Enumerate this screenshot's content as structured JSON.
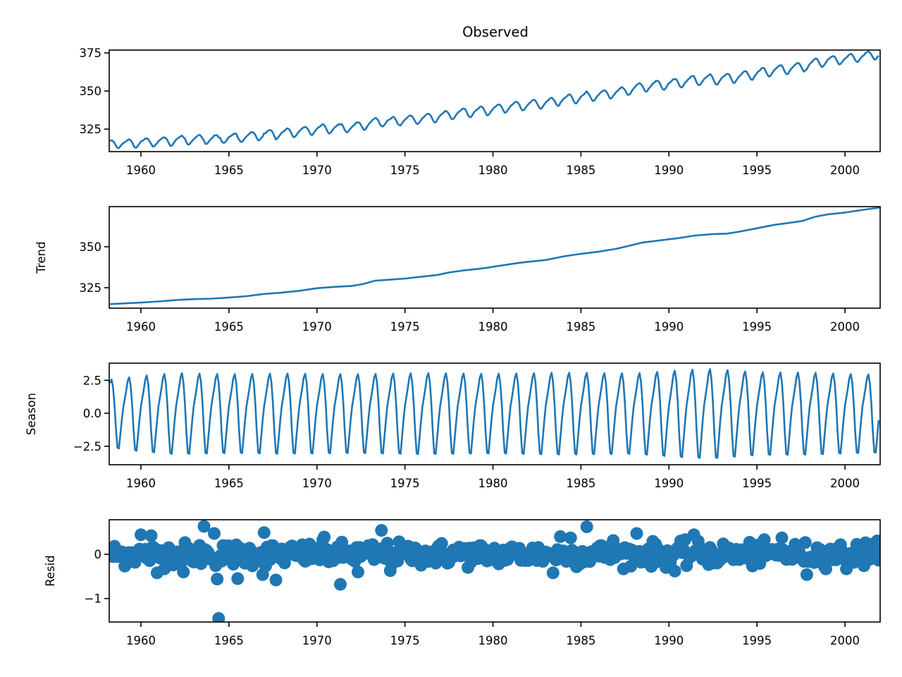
{
  "figure": {
    "title": "Observed",
    "line_color": "#1f77b4",
    "marker_color": "#1f77b4"
  },
  "chart_data": [
    {
      "id": "observed",
      "type": "line",
      "title": "Observed",
      "xlabel": "",
      "ylabel": "",
      "xlim": [
        1958.2,
        2002.0
      ],
      "ylim": [
        310.2,
        376.9
      ],
      "xticks": [
        1960,
        1965,
        1970,
        1975,
        1980,
        1985,
        1990,
        1995,
        2000
      ],
      "xtick_labels": [
        "1960",
        "1965",
        "1970",
        "1975",
        "1980",
        "1985",
        "1990",
        "1995",
        "2000"
      ],
      "yticks": [
        325,
        350,
        375
      ],
      "ytick_labels": [
        "325",
        "350",
        "375"
      ],
      "grid": false,
      "series": [
        {
          "name": "observed",
          "frequency": "monthly",
          "start": 1958.25,
          "end": 2001.99,
          "annual_mean_years": [
            1958,
            1960,
            1962,
            1964,
            1966,
            1968,
            1970,
            1972,
            1974,
            1976,
            1978,
            1980,
            1982,
            1984,
            1986,
            1988,
            1990,
            1992,
            1994,
            1996,
            1998,
            2000,
            2002
          ],
          "annual_mean_values": [
            315.2,
            316.9,
            318.4,
            319.4,
            321.1,
            322.9,
            325.5,
            327.3,
            330.2,
            332.0,
            335.3,
            338.5,
            341.1,
            344.1,
            346.9,
            350.4,
            354.0,
            356.3,
            358.6,
            362.2,
            366.4,
            369.3,
            372.5
          ]
        }
      ]
    },
    {
      "id": "trend",
      "type": "line",
      "title": "",
      "xlabel": "",
      "ylabel": "Trend",
      "xlim": [
        1958.2,
        2002.0
      ],
      "ylim": [
        312.5,
        374.5
      ],
      "xticks": [
        1960,
        1965,
        1970,
        1975,
        1980,
        1985,
        1990,
        1995,
        2000
      ],
      "xtick_labels": [
        "1960",
        "1965",
        "1970",
        "1975",
        "1980",
        "1985",
        "1990",
        "1995",
        "2000"
      ],
      "yticks": [
        325,
        350
      ],
      "ytick_labels": [
        "325",
        "350"
      ],
      "grid": false,
      "series": [
        {
          "name": "trend",
          "x": [
            1958.25,
            1960.0,
            1961.0,
            1962.0,
            1963.0,
            1964.0,
            1965.0,
            1966.0,
            1967.0,
            1968.0,
            1969.0,
            1970.0,
            1971.0,
            1972.0,
            1972.6,
            1973.3,
            1974.0,
            1975.0,
            1976.0,
            1976.8,
            1977.5,
            1978.3,
            1979.5,
            1980.5,
            1981.5,
            1982.5,
            1983.0,
            1984.0,
            1985.0,
            1986.0,
            1987.0,
            1987.6,
            1988.5,
            1989.5,
            1990.5,
            1991.5,
            1992.5,
            1993.3,
            1994.0,
            1995.0,
            1996.0,
            1997.0,
            1997.6,
            1998.3,
            1999.0,
            2000.0,
            2001.0,
            2002.0
          ],
          "y": [
            315.0,
            315.9,
            316.6,
            317.5,
            318.0,
            318.3,
            319.0,
            319.8,
            321.2,
            322.0,
            323.1,
            324.7,
            325.5,
            326.1,
            327.2,
            329.3,
            329.8,
            330.6,
            331.8,
            332.7,
            334.3,
            335.5,
            336.9,
            338.6,
            340.2,
            341.4,
            341.9,
            344.1,
            345.7,
            347.0,
            348.7,
            350.2,
            352.6,
            353.9,
            355.2,
            356.9,
            357.7,
            358.0,
            359.2,
            361.3,
            363.4,
            364.8,
            365.8,
            368.3,
            369.7,
            370.9,
            372.5,
            374.0
          ]
        }
      ]
    },
    {
      "id": "season",
      "type": "line",
      "title": "",
      "xlabel": "",
      "ylabel": "Season",
      "xlim": [
        1958.2,
        2002.0
      ],
      "ylim": [
        -3.9,
        3.8
      ],
      "xticks": [
        1960,
        1965,
        1970,
        1975,
        1980,
        1985,
        1990,
        1995,
        2000
      ],
      "xtick_labels": [
        "1960",
        "1965",
        "1970",
        "1975",
        "1980",
        "1985",
        "1990",
        "1995",
        "2000"
      ],
      "yticks": [
        -2.5,
        0.0,
        2.5
      ],
      "ytick_labels": [
        "−2.5",
        "0.0",
        "2.5"
      ],
      "grid": false,
      "series": [
        {
          "name": "season",
          "frequency": "monthly",
          "start": 1958.25,
          "end": 2001.99,
          "monthly_profile_jan_to_dec": [
            0.55,
            1.25,
            1.95,
            2.75,
            3.05,
            2.35,
            0.75,
            -1.45,
            -3.05,
            -3.1,
            -1.85,
            -0.55
          ],
          "amplitude_years": [
            1958,
            1960,
            1962,
            1965,
            1968,
            1972,
            1976,
            1980,
            1984,
            1988,
            1991,
            1992.5,
            1995,
            1998,
            2000,
            2002
          ],
          "amplitude_scale": [
            0.82,
            0.93,
            1.0,
            0.97,
            0.99,
            0.97,
            1.0,
            0.98,
            1.01,
            0.99,
            1.08,
            1.1,
            1.02,
            1.01,
            0.98,
            0.96
          ]
        }
      ]
    },
    {
      "id": "resid",
      "type": "scatter",
      "title": "",
      "xlabel": "",
      "ylabel": "Resid",
      "xlim": [
        1958.2,
        2002.0
      ],
      "ylim": [
        -1.53,
        0.78
      ],
      "xticks": [
        1960,
        1965,
        1970,
        1975,
        1980,
        1985,
        1990,
        1995,
        2000
      ],
      "xtick_labels": [
        "1960",
        "1965",
        "1970",
        "1975",
        "1980",
        "1985",
        "1990",
        "1995",
        "2000"
      ],
      "yticks": [
        -1,
        0
      ],
      "ytick_labels": [
        "−1",
        "0"
      ],
      "grid": false,
      "series": [
        {
          "name": "resid",
          "frequency": "monthly",
          "start": 1958.25,
          "end": 2001.99,
          "typical_spread": 0.2,
          "notable_points": [
            {
              "x": 1963.6,
              "y": 0.63
            },
            {
              "x": 1964.4,
              "y": -1.45
            },
            {
              "x": 1964.3,
              "y": -0.56
            },
            {
              "x": 1960.0,
              "y": 0.44
            },
            {
              "x": 1960.6,
              "y": 0.42
            },
            {
              "x": 1964.2,
              "y": 0.47
            },
            {
              "x": 1965.5,
              "y": -0.55
            },
            {
              "x": 1966.9,
              "y": -0.46
            },
            {
              "x": 1967.7,
              "y": -0.58
            },
            {
              "x": 1967.0,
              "y": 0.49
            },
            {
              "x": 1970.4,
              "y": 0.39
            },
            {
              "x": 1971.3,
              "y": -0.68
            },
            {
              "x": 1972.3,
              "y": -0.4
            },
            {
              "x": 1973.7,
              "y": 0.54
            },
            {
              "x": 1974.2,
              "y": -0.37
            },
            {
              "x": 1960.9,
              "y": -0.42
            },
            {
              "x": 1962.4,
              "y": -0.4
            },
            {
              "x": 1983.4,
              "y": -0.42
            },
            {
              "x": 1983.8,
              "y": 0.4
            },
            {
              "x": 1984.4,
              "y": 0.37
            },
            {
              "x": 1985.3,
              "y": 0.62
            },
            {
              "x": 1986.8,
              "y": 0.31
            },
            {
              "x": 1988.2,
              "y": 0.47
            },
            {
              "x": 1990.3,
              "y": -0.38
            },
            {
              "x": 1991.4,
              "y": 0.44
            },
            {
              "x": 1996.4,
              "y": 0.37
            },
            {
              "x": 1997.8,
              "y": -0.46
            },
            {
              "x": 2000.1,
              "y": -0.33
            },
            {
              "x": 2001.2,
              "y": 0.26
            }
          ]
        }
      ]
    }
  ]
}
